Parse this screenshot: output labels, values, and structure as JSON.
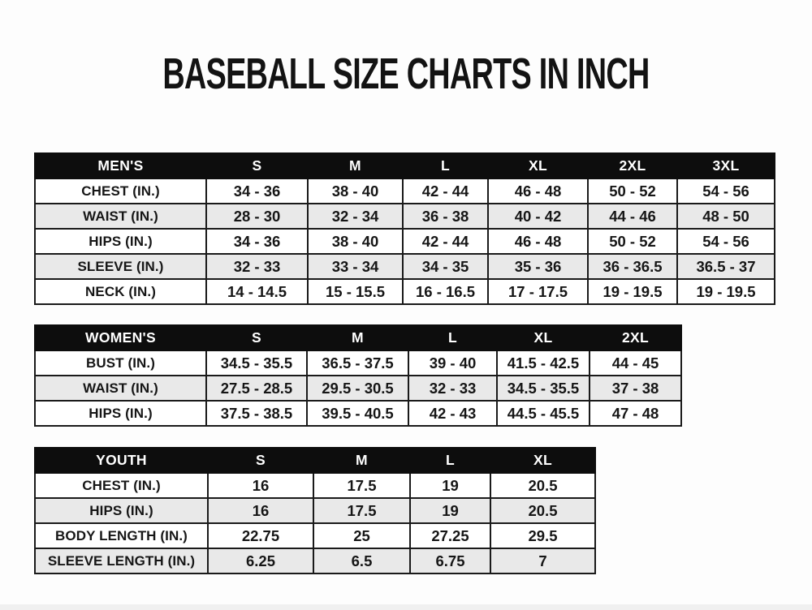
{
  "page": {
    "title": "BASEBALL SIZE CHARTS IN INCH"
  },
  "colors": {
    "header_bg": "#0d0d0d",
    "header_text": "#ffffff",
    "stripe": "#e9e9e9",
    "border": "#1a1a1a"
  },
  "tables": [
    {
      "id": "mens",
      "name": "mens-size-table",
      "header": [
        "MEN'S",
        "S",
        "M",
        "L",
        "XL",
        "2XL",
        "3XL"
      ],
      "rows": [
        [
          "CHEST (IN.)",
          "34 - 36",
          "38 - 40",
          "42 - 44",
          "46 - 48",
          "50 - 52",
          "54 - 56"
        ],
        [
          "WAIST (IN.)",
          "28 - 30",
          "32 - 34",
          "36 - 38",
          "40 - 42",
          "44 - 46",
          "48 - 50"
        ],
        [
          "HIPS (IN.)",
          "34 - 36",
          "38 - 40",
          "42 - 44",
          "46 - 48",
          "50 - 52",
          "54 - 56"
        ],
        [
          "SLEEVE (IN.)",
          "32 - 33",
          "33 - 34",
          "34 - 35",
          "35 - 36",
          "36 - 36.5",
          "36.5 - 37"
        ],
        [
          "NECK (IN.)",
          "14 - 14.5",
          "15 - 15.5",
          "16 - 16.5",
          "17 - 17.5",
          "19 - 19.5",
          "19 - 19.5"
        ]
      ]
    },
    {
      "id": "womens",
      "name": "womens-size-table",
      "header": [
        "WOMEN'S",
        "S",
        "M",
        "L",
        "XL",
        "2XL"
      ],
      "rows": [
        [
          "BUST (IN.)",
          "34.5 - 35.5",
          "36.5 - 37.5",
          "39 - 40",
          "41.5 - 42.5",
          "44 - 45"
        ],
        [
          "WAIST (IN.)",
          "27.5 - 28.5",
          "29.5 - 30.5",
          "32 - 33",
          "34.5 - 35.5",
          "37 - 38"
        ],
        [
          "HIPS (IN.)",
          "37.5 - 38.5",
          "39.5 - 40.5",
          "42 - 43",
          "44.5 - 45.5",
          "47 - 48"
        ]
      ]
    },
    {
      "id": "youth",
      "name": "youth-size-table",
      "header": [
        "YOUTH",
        "S",
        "M",
        "L",
        "XL"
      ],
      "rows": [
        [
          "CHEST (IN.)",
          "16",
          "17.5",
          "19",
          "20.5"
        ],
        [
          "HIPS (IN.)",
          "16",
          "17.5",
          "19",
          "20.5"
        ],
        [
          "BODY LENGTH (IN.)",
          "22.75",
          "25",
          "27.25",
          "29.5"
        ],
        [
          "SLEEVE LENGTH (IN.)",
          "6.25",
          "6.5",
          "6.75",
          "7"
        ]
      ]
    }
  ]
}
